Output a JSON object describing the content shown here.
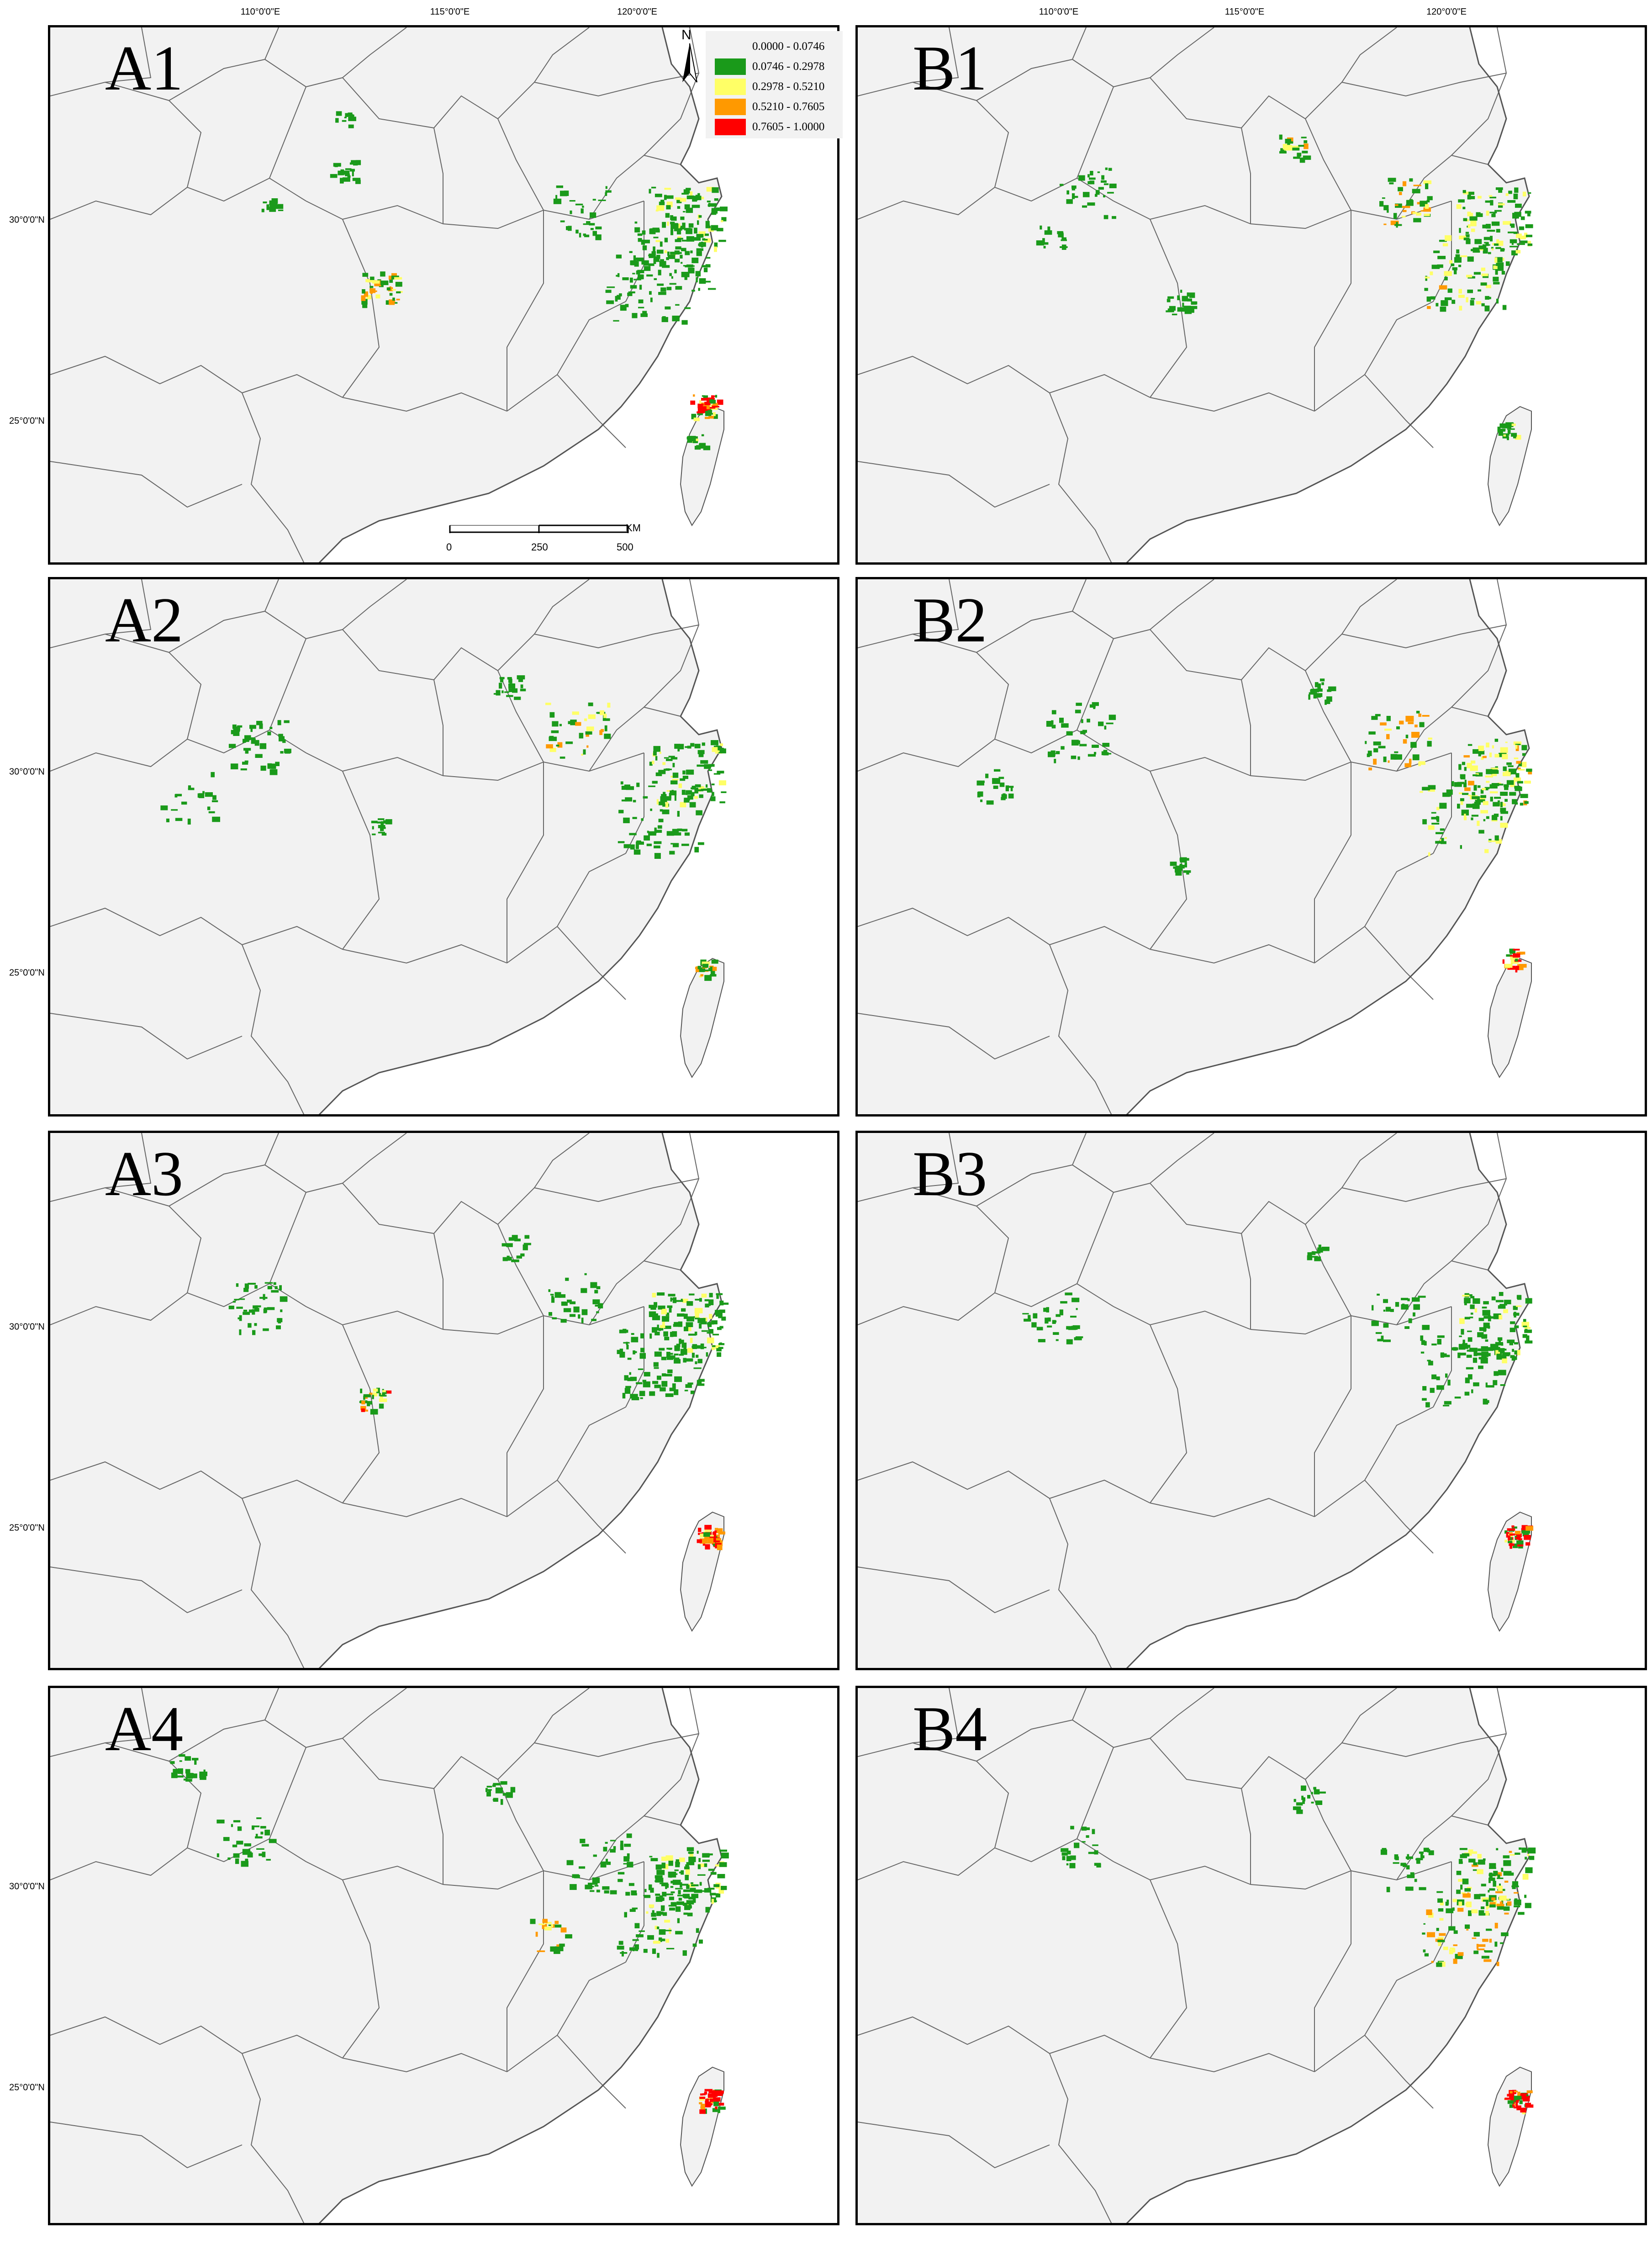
{
  "figure": {
    "lon_ticks": [
      "110°0'0\"E",
      "115°0'0\"E",
      "120°0'0\"E"
    ],
    "lat_ticks": [
      "30°0'0\"N",
      "25°0'0\"N"
    ],
    "legend": {
      "classes": [
        {
          "label": "0.0000 - 0.0746",
          "color": "#f2f2f2"
        },
        {
          "label": "0.0746 - 0.2978",
          "color": "#1a9a1a"
        },
        {
          "label": "0.2978 - 0.5210",
          "color": "#ffff66"
        },
        {
          "label": "0.5210 - 0.7605",
          "color": "#ff9900"
        },
        {
          "label": "0.7605 - 1.0000",
          "color": "#ff0000"
        }
      ]
    },
    "north_label": "N",
    "scale": {
      "labels": [
        "0",
        "250",
        "500"
      ],
      "unit": "KM"
    }
  },
  "panels": [
    {
      "id": "A1",
      "label": "A1",
      "has_legend": true,
      "has_scale": true
    },
    {
      "id": "B1",
      "label": "B1"
    },
    {
      "id": "A2",
      "label": "A2"
    },
    {
      "id": "B2",
      "label": "B2"
    },
    {
      "id": "A3",
      "label": "A3"
    },
    {
      "id": "B3",
      "label": "B3"
    },
    {
      "id": "A4",
      "label": "A4"
    },
    {
      "id": "B4",
      "label": "B4"
    }
  ],
  "colors": {
    "land": "#f2f2f2",
    "boundary": "#666666",
    "coast_islands": "#555555"
  }
}
